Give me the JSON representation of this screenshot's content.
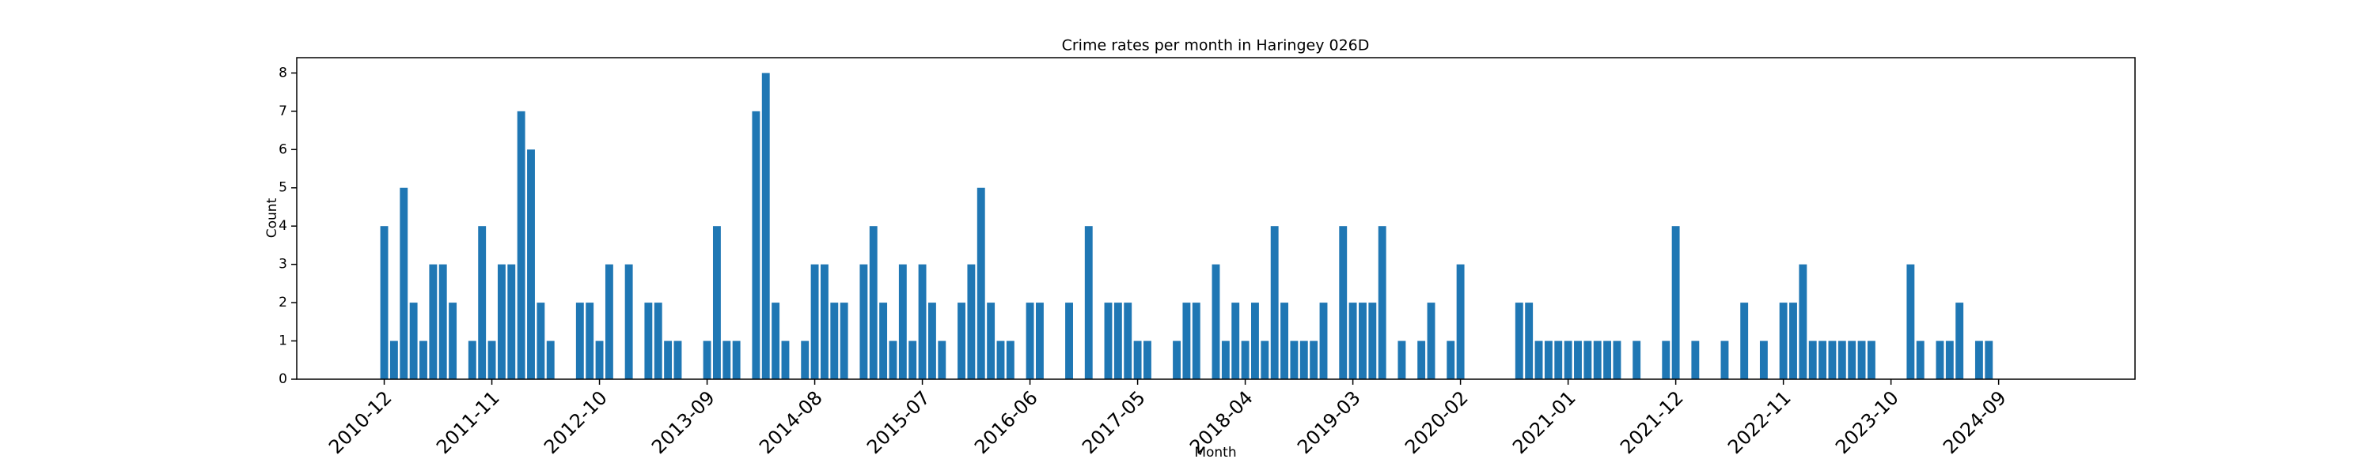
{
  "chart_data": {
    "type": "bar",
    "title": "Crime rates per month in Haringey 026D",
    "x_label": "Month",
    "y_label": "Count",
    "color": "#1f77b4",
    "categories": [
      "2010-12",
      null,
      null,
      null,
      null,
      null,
      null,
      null,
      null,
      null,
      null,
      "2011-11",
      null,
      null,
      null,
      null,
      null,
      null,
      null,
      null,
      null,
      null,
      "2012-10",
      null,
      null,
      null,
      null,
      null,
      null,
      null,
      null,
      null,
      null,
      "2013-09",
      null,
      null,
      null,
      null,
      null,
      null,
      null,
      null,
      null,
      null,
      "2014-08",
      null,
      null,
      null,
      null,
      null,
      null,
      null,
      null,
      null,
      null,
      "2015-07",
      null,
      null,
      null,
      null,
      null,
      null,
      null,
      null,
      null,
      null,
      "2016-06",
      null,
      null,
      null,
      null,
      null,
      null,
      null,
      null,
      null,
      null,
      "2017-05",
      null,
      null,
      null,
      null,
      null,
      null,
      null,
      null,
      null,
      null,
      "2018-04",
      null,
      null,
      null,
      null,
      null,
      null,
      null,
      null,
      null,
      null,
      "2019-03",
      null,
      null,
      null,
      null,
      null,
      null,
      null,
      null,
      null,
      null,
      "2020-02",
      null,
      null,
      null,
      null,
      null,
      null,
      null,
      null,
      null,
      null,
      "2021-01",
      null,
      null,
      null,
      null,
      null,
      null,
      null,
      null,
      null,
      null,
      "2021-12",
      null,
      null,
      null,
      null,
      null,
      null,
      null,
      null,
      null,
      null,
      "2022-11",
      null,
      null,
      null,
      null,
      null,
      null,
      null,
      null,
      null,
      null,
      "2023-10",
      null,
      null,
      null,
      null,
      null,
      null,
      null,
      null,
      null,
      null,
      "2024-09",
      null,
      null,
      null,
      null,
      null
    ],
    "values": [
      4,
      1,
      5,
      2,
      1,
      3,
      3,
      2,
      0,
      1,
      4,
      1,
      3,
      3,
      7,
      6,
      2,
      1,
      0,
      0,
      2,
      2,
      1,
      3,
      0,
      3,
      0,
      2,
      2,
      1,
      1,
      0,
      0,
      1,
      4,
      1,
      1,
      0,
      7,
      8,
      2,
      1,
      0,
      1,
      3,
      3,
      2,
      2,
      0,
      3,
      4,
      2,
      1,
      3,
      1,
      3,
      2,
      1,
      0,
      2,
      3,
      5,
      2,
      1,
      1,
      0,
      2,
      2,
      0,
      0,
      2,
      0,
      4,
      0,
      2,
      2,
      2,
      1,
      1,
      0,
      0,
      1,
      2,
      2,
      0,
      3,
      1,
      2,
      1,
      2,
      1,
      4,
      2,
      1,
      1,
      1,
      2,
      0,
      4,
      2,
      2,
      2,
      4,
      0,
      1,
      0,
      1,
      2,
      0,
      1,
      3,
      0,
      0,
      0,
      0,
      0,
      2,
      2,
      1,
      1,
      1,
      1,
      1,
      1,
      1,
      1,
      1,
      0,
      1,
      0,
      0,
      1,
      4,
      0,
      1,
      0,
      0,
      1,
      0,
      2,
      0,
      1,
      0,
      2,
      2,
      3,
      1,
      1,
      1,
      1,
      1,
      1,
      1,
      0,
      0,
      0,
      3,
      1,
      0,
      1,
      1,
      2,
      0,
      1,
      1,
      0,
      0,
      0,
      0,
      0,
      0
    ],
    "ylim": [
      0,
      8.4
    ],
    "yticks": [
      0,
      1,
      2,
      3,
      4,
      5,
      6,
      7,
      8
    ]
  }
}
